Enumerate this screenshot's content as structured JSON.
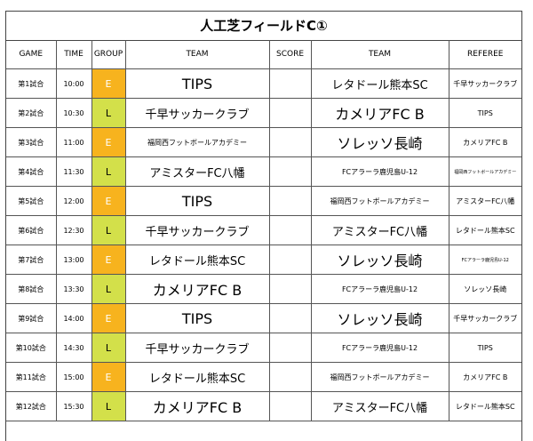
{
  "title": "人工芝フィールドC①",
  "headers": {
    "game": "GAME",
    "time": "TIME",
    "group": "GROUP",
    "team1": "TEAM",
    "score": "SCORE",
    "team2": "TEAM",
    "referee": "REFEREE"
  },
  "group_colors": {
    "E": "#f7b31e",
    "L": "#d3e04a"
  },
  "matches": [
    {
      "game": "第1試合",
      "time": "10:00",
      "group": "E",
      "team1": "TIPS",
      "score": "",
      "team2": "レタドール熊本SC",
      "referee": "千早サッカークラブ"
    },
    {
      "game": "第2試合",
      "time": "10:30",
      "group": "L",
      "team1": "千早サッカークラブ",
      "score": "",
      "team2": "カメリアFC B",
      "referee": "TIPS"
    },
    {
      "game": "第3試合",
      "time": "11:00",
      "group": "E",
      "team1": "福岡西フットボールアカデミー",
      "score": "",
      "team2": "ソレッソ長崎",
      "referee": "カメリアFC B"
    },
    {
      "game": "第4試合",
      "time": "11:30",
      "group": "L",
      "team1": "アミスターFC八幡",
      "score": "",
      "team2": "FCアラーラ鹿児島U-12",
      "referee": "福岡西フットボールアカデミー"
    },
    {
      "game": "第5試合",
      "time": "12:00",
      "group": "E",
      "team1": "TIPS",
      "score": "",
      "team2": "福岡西フットボールアカデミー",
      "referee": "アミスターFC八幡"
    },
    {
      "game": "第6試合",
      "time": "12:30",
      "group": "L",
      "team1": "千早サッカークラブ",
      "score": "",
      "team2": "アミスターFC八幡",
      "referee": "レタドール熊本SC"
    },
    {
      "game": "第7試合",
      "time": "13:00",
      "group": "E",
      "team1": "レタドール熊本SC",
      "score": "",
      "team2": "ソレッソ長崎",
      "referee": "FCアラーラ鹿児島U-12"
    },
    {
      "game": "第8試合",
      "time": "13:30",
      "group": "L",
      "team1": "カメリアFC B",
      "score": "",
      "team2": "FCアラーラ鹿児島U-12",
      "referee": "ソレッソ長崎"
    },
    {
      "game": "第9試合",
      "time": "14:00",
      "group": "E",
      "team1": "TIPS",
      "score": "",
      "team2": "ソレッソ長崎",
      "referee": "千早サッカークラブ"
    },
    {
      "game": "第10試合",
      "time": "14:30",
      "group": "L",
      "team1": "千早サッカークラブ",
      "score": "",
      "team2": "FCアラーラ鹿児島U-12",
      "referee": "TIPS"
    },
    {
      "game": "第11試合",
      "time": "15:00",
      "group": "E",
      "team1": "レタドール熊本SC",
      "score": "",
      "team2": "福岡西フットボールアカデミー",
      "referee": "カメリアFC B"
    },
    {
      "game": "第12試合",
      "time": "15:30",
      "group": "L",
      "team1": "カメリアFC B",
      "score": "",
      "team2": "アミスターFC八幡",
      "referee": "レタドール熊本SC"
    }
  ]
}
